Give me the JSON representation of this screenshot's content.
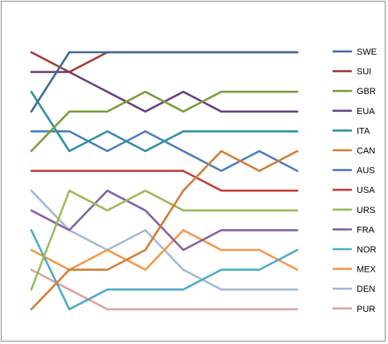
{
  "chart_data": {
    "type": "line",
    "title": "",
    "xlabel": "",
    "ylabel": "",
    "x": [
      1,
      2,
      3,
      4,
      5,
      6,
      7,
      8
    ],
    "ylim": [
      1,
      14
    ],
    "y_inverted": true,
    "grid": false,
    "legend_position": "right",
    "series": [
      {
        "name": "SWE",
        "color": "#3d6a9b",
        "values": [
          4,
          1,
          1,
          1,
          1,
          1,
          1,
          1
        ]
      },
      {
        "name": "SUI",
        "color": "#a33a33",
        "values": [
          1,
          2,
          1,
          1,
          1,
          1,
          1,
          1
        ]
      },
      {
        "name": "GBR",
        "color": "#7c9c3c",
        "values": [
          6,
          4,
          4,
          3,
          4,
          3,
          3,
          3
        ]
      },
      {
        "name": "EUA",
        "color": "#65437f",
        "values": [
          2,
          2,
          3,
          4,
          3,
          4,
          4,
          4
        ]
      },
      {
        "name": "ITA",
        "color": "#2f8fa0",
        "values": [
          3,
          6,
          5,
          6,
          5,
          5,
          5,
          5
        ]
      },
      {
        "name": "CAN",
        "color": "#d27d34",
        "values": [
          14,
          12,
          12,
          11,
          8,
          6,
          7,
          6
        ]
      },
      {
        "name": "AUS",
        "color": "#4a7dbf",
        "values": [
          5,
          5,
          6,
          5,
          6,
          7,
          6,
          7
        ]
      },
      {
        "name": "USA",
        "color": "#c0413b",
        "values": [
          7,
          7,
          7,
          7,
          7,
          8,
          8,
          8
        ]
      },
      {
        "name": "URS",
        "color": "#9bbb59",
        "values": [
          13,
          8,
          9,
          8,
          9,
          9,
          9,
          9
        ]
      },
      {
        "name": "FRA",
        "color": "#8064a2",
        "values": [
          9,
          10,
          8,
          9,
          11,
          10,
          10,
          10
        ]
      },
      {
        "name": "NOR",
        "color": "#4bacc6",
        "values": [
          10,
          14,
          13,
          13,
          13,
          12,
          12,
          11
        ]
      },
      {
        "name": "MEX",
        "color": "#f79646",
        "values": [
          11,
          12,
          11,
          12,
          10,
          11,
          11,
          12
        ]
      },
      {
        "name": "DEN",
        "color": "#a5b8d6",
        "values": [
          8,
          10,
          11,
          10,
          12,
          13,
          13,
          13
        ]
      },
      {
        "name": "PUR",
        "color": "#d9a3a0",
        "values": [
          12,
          13,
          14,
          14,
          14,
          14,
          14,
          14
        ]
      }
    ]
  }
}
